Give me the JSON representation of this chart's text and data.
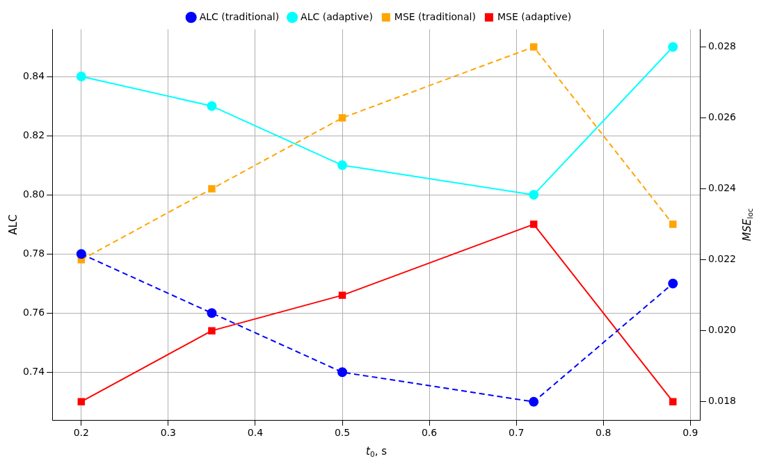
{
  "chart_data": {
    "type": "line",
    "xlabel": "t$_{0}$, s",
    "ylabel": "ALC",
    "y2label": "MSE$_{loc}$",
    "x": [
      0.2,
      0.35,
      0.5,
      0.72,
      0.88
    ],
    "xlim": [
      0.1667,
      0.9117
    ],
    "xticks": [
      0.2,
      0.3,
      0.4,
      0.5,
      0.6,
      0.7,
      0.8,
      0.9
    ],
    "ylim": [
      0.7238,
      0.856
    ],
    "yticks": [
      0.74,
      0.76,
      0.78,
      {
        "value": 0.8,
        "label": "0.80"
      },
      0.82,
      0.84
    ],
    "y2lim": [
      0.01748,
      0.0285
    ],
    "y2ticks": [
      0.018,
      {
        "value": 0.02,
        "label": "0.020"
      },
      0.022,
      0.024,
      0.026,
      0.028
    ],
    "grid": true,
    "legend": "top",
    "series": [
      {
        "name": "ALC (traditional)",
        "color": "#0000ff",
        "values": [
          0.78,
          0.76,
          0.74,
          0.73,
          0.77
        ],
        "marker": "circle",
        "line_style": "dashed"
      },
      {
        "name": "ALC (adaptive)",
        "color": "#00ffff",
        "values": [
          0.84,
          0.83,
          0.81,
          0.8,
          0.85
        ],
        "marker": "circle",
        "line_style": "solid"
      },
      {
        "name": "MSE (traditional)",
        "color": "#ffa500",
        "values": [
          0.022,
          0.024,
          0.026,
          0.028,
          0.023
        ],
        "marker": "square",
        "line_style": "dashed",
        "axis": "y2"
      },
      {
        "name": "MSE (adaptive)",
        "color": "#ff0000",
        "values": [
          0.018,
          0.02,
          0.021,
          0.023,
          0.018
        ],
        "marker": "square",
        "line_style": "solid",
        "axis": "y2"
      }
    ]
  }
}
